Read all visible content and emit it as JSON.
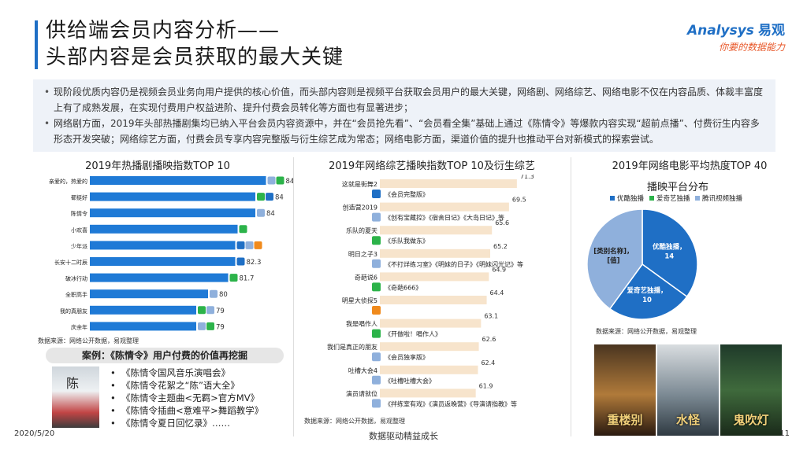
{
  "header": {
    "title_line1": "供给端会员内容分析——",
    "title_line2": "头部内容是会员获取的最大关键",
    "logo_en": "Analysys",
    "logo_cn": "易观",
    "logo_slogan": "你要的数据能力"
  },
  "summary": [
    "现阶段优质内容仍是视频会员业务向用户提供的核心价值，而头部内容则是视频平台获取会员用户的最大关键，网络剧、网络综艺、网络电影不仅在内容品质、体裁丰富度上有了成熟发展，在实现付费用户权益进阶、提升付费会员转化等方面也有显著进步；",
    "网络剧方面，2019年头部热播剧集均已纳入平台会员内容资源中，并在“会员抢先看”、“会员看全集”基础上通过《陈情令》等爆款内容实现“超前点播”、付费衍生内容多形态开发突破；网络综艺方面，付费会员专享内容完整版与衍生综艺成为常态；网络电影方面，渠道价值的提升也推动平台对新模式的探索尝试。"
  ],
  "panels": {
    "drama_title": "2019年热播剧播映指数TOP 10",
    "variety_title": "2019年网络综艺播映指数TOP 10及衍生综艺",
    "movie_title_line1": "2019年网络电影平均热度TOP 40",
    "movie_title_line2": "播映平台分布"
  },
  "colors": {
    "accent": "#1f6fc5",
    "bar_blue": "#1f7ad6",
    "bar_beige": "#f7e4cc",
    "youku": "#1f6fc5",
    "iqiyi": "#2cb34a",
    "tencent": "#8fb0dc",
    "mango": "#f08a1c"
  },
  "chart_data": [
    {
      "type": "bar",
      "orientation": "horizontal",
      "title": "2019年热播剧播映指数TOP 10",
      "categories": [
        "亲爱的，热爱的",
        "都挺好",
        "陈情令",
        "小欢喜",
        "少年派",
        "长安十二时辰",
        "破冰行动",
        "全职高手",
        "我的真朋友",
        "庆余年"
      ],
      "values": [
        84.9,
        84,
        84,
        82.5,
        82.3,
        82.3,
        81.7,
        80,
        79,
        79
      ],
      "value_labels": [
        "84.9",
        "84",
        "84",
        "",
        "",
        "82.3",
        "81.7",
        "80",
        "79",
        "79"
      ],
      "platforms": [
        [
          "tencent",
          "iqiyi"
        ],
        [
          "iqiyi",
          "youku"
        ],
        [
          "tencent"
        ],
        [
          "iqiyi"
        ],
        [
          "youku",
          "tencent",
          "mango"
        ],
        [
          "youku"
        ],
        [
          "iqiyi"
        ],
        [
          "tencent"
        ],
        [
          "iqiyi",
          "tencent"
        ],
        [
          "tencent",
          "iqiyi"
        ]
      ],
      "xlim": [
        70,
        86
      ],
      "source": "数据来源：网络公开数据，易观整理"
    },
    {
      "type": "bar",
      "orientation": "horizontal",
      "title": "2019年网络综艺播映指数TOP 10及衍生综艺",
      "categories": [
        "这就是街舞2",
        "创造营2019",
        "乐队的夏天",
        "明日之子3",
        "奇葩说6",
        "明星大侦探5",
        "我是唱作人",
        "我们是真正的朋友",
        "吐槽大会4",
        "演员请就位"
      ],
      "values": [
        71.3,
        69.5,
        65.6,
        65.2,
        64.9,
        64.4,
        63.1,
        62.6,
        62.4,
        61.9
      ],
      "platform": [
        "youku",
        "tencent",
        "iqiyi",
        "tencent",
        "iqiyi",
        "mango",
        "iqiyi",
        "tencent",
        "tencent",
        "tencent"
      ],
      "derived": [
        "《会员完整版》",
        "《创有宝藏控》《宿舍日记》《大岛日记》等",
        "《乐队我做东》",
        "《不打烊练习室》《明妹的日子》《明妹闪光记》等",
        "《奇葩666》",
        "",
        "《开做啦！唱作人》",
        "《会员独享版》",
        "《吐槽吐槽大会》",
        "《拌练室有戏》《演员返晚营》《导演请指教》等"
      ],
      "xlim": [
        40,
        76
      ],
      "source": "数据来源：网络公开数据，易观整理"
    },
    {
      "type": "pie",
      "title": "2019年网络电影平均热度TOP 40",
      "subtitle": "播映平台分布",
      "legend": [
        "优酷独播",
        "爱奇艺独播",
        "腾讯视频独播"
      ],
      "legend_position": "top",
      "slices": [
        {
          "label": "优酷独播",
          "value": 14,
          "text": "优酷独播，14",
          "color": "youku"
        },
        {
          "label": "爱奇艺独播",
          "value": 10,
          "text": "爱奇艺独播，10",
          "color": "youku"
        },
        {
          "label": "腾讯视频独播",
          "value": 16,
          "text": "[类别名称]，[值]",
          "color": "tencent"
        }
      ],
      "source": "数据来源：网络公开数据，易观整理"
    }
  ],
  "case": {
    "title": "案例：《陈情令》用户付费的价值再挖掘",
    "poster_glyph": "陈",
    "items": [
      "《陈情令国风音乐演唱会》",
      "《陈情令花絮之“陈”语大全》",
      "《陈情令主题曲<无羁>官方MV》",
      "《陈情令插曲<意难平>舞蹈教学》",
      "《陈情令夏日回忆录》……"
    ]
  },
  "movies": [
    "重楼别",
    "水怪",
    "鬼吹灯"
  ],
  "footer": {
    "date": "2020/5/20",
    "slogan": "数据驱动精益成长",
    "page": "11"
  }
}
